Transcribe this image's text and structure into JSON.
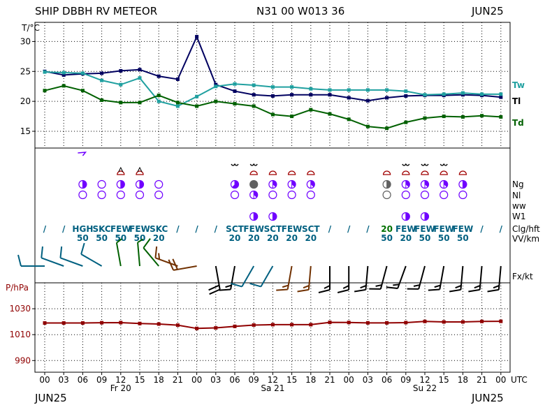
{
  "header": {
    "station": "SHIP DBBH RV METEOR",
    "position": "N31 00 W013 36",
    "month": "JUN25"
  },
  "footer": {
    "left": "JUN25",
    "right": "JUN25"
  },
  "colors": {
    "temperature": "#000060",
    "wet_bulb": "#20a0a0",
    "dewpoint": "#006000",
    "pressure": "#900000",
    "cloud_text": "#006080",
    "cloud_symbol": "#7000ff",
    "weather_symbol": "#a00000",
    "low_cloud_label": "#007000",
    "grid": "#000000"
  },
  "legend": {
    "tw": "Tw",
    "tl": "Tl",
    "td": "Td",
    "ng": "Ng",
    "nl": "Nl",
    "ww": "ww",
    "w1": "W1",
    "clg": "Clg/hft",
    "vv": "VV/km",
    "fx": "Fx/kt",
    "temp_unit": "T/°C",
    "pressure_unit": "P/hPa",
    "utc": "UTC"
  },
  "chart_data": {
    "type": "line",
    "x": [
      "00",
      "03",
      "06",
      "09",
      "12",
      "15",
      "18",
      "21",
      "00",
      "03",
      "06",
      "09",
      "12",
      "15",
      "18",
      "21",
      "00",
      "03",
      "06",
      "09",
      "12",
      "15",
      "18",
      "21",
      "00"
    ],
    "days": [
      {
        "label": "Fr 20",
        "tick_index": 4
      },
      {
        "label": "Sa 21",
        "tick_index": 12
      },
      {
        "label": "Su 22",
        "tick_index": 20
      }
    ],
    "temperature_panel": {
      "ylabel": "T/°C",
      "ylim": [
        12.2,
        33.2
      ],
      "ticks": [
        15,
        20,
        25,
        30
      ],
      "series": [
        {
          "name": "Tl",
          "color_key": "temperature",
          "points": [
            [
              0,
              25.0
            ],
            [
              1,
              24.4
            ],
            [
              2,
              24.6
            ],
            [
              3,
              24.7
            ],
            [
              4,
              25.1
            ],
            [
              5,
              25.3
            ],
            [
              6,
              24.2
            ],
            [
              7,
              23.7
            ],
            [
              8,
              30.8
            ],
            [
              9,
              22.8
            ],
            [
              10,
              21.7
            ],
            [
              11,
              21.1
            ],
            [
              12,
              20.9
            ],
            [
              13,
              21.1
            ],
            [
              14,
              21.1
            ],
            [
              15,
              21.1
            ],
            [
              16,
              20.6
            ],
            [
              17,
              20.1
            ],
            [
              18,
              20.6
            ],
            [
              19,
              20.9
            ],
            [
              20,
              21.0
            ],
            [
              21,
              21.0
            ],
            [
              22,
              21.1
            ],
            [
              23,
              21.0
            ],
            [
              24,
              20.7
            ]
          ]
        },
        {
          "name": "Tw",
          "color_key": "wet_bulb",
          "points": [
            [
              0,
              24.9
            ],
            [
              1,
              24.8
            ],
            [
              2,
              24.7
            ],
            [
              3,
              23.5
            ],
            [
              4,
              22.8
            ],
            [
              5,
              23.9
            ],
            [
              6,
              20.0
            ],
            [
              7,
              19.2
            ],
            [
              8,
              20.8
            ],
            [
              9,
              22.5
            ],
            [
              10,
              22.9
            ],
            [
              11,
              22.7
            ],
            [
              12,
              22.4
            ],
            [
              13,
              22.4
            ],
            [
              14,
              22.1
            ],
            [
              15,
              21.9
            ],
            [
              16,
              21.9
            ],
            [
              17,
              21.9
            ],
            [
              18,
              21.9
            ],
            [
              19,
              21.7
            ],
            [
              20,
              21.1
            ],
            [
              21,
              21.2
            ],
            [
              22,
              21.4
            ],
            [
              23,
              21.2
            ],
            [
              24,
              21.2
            ]
          ]
        },
        {
          "name": "Td",
          "color_key": "dewpoint",
          "points": [
            [
              0,
              21.8
            ],
            [
              1,
              22.6
            ],
            [
              2,
              21.8
            ],
            [
              3,
              20.2
            ],
            [
              4,
              19.8
            ],
            [
              5,
              19.8
            ],
            [
              6,
              21.0
            ],
            [
              7,
              19.8
            ],
            [
              8,
              19.2
            ],
            [
              9,
              20.0
            ],
            [
              10,
              19.6
            ],
            [
              11,
              19.2
            ],
            [
              12,
              17.8
            ],
            [
              13,
              17.5
            ],
            [
              14,
              18.6
            ],
            [
              15,
              17.9
            ],
            [
              16,
              17.0
            ],
            [
              17,
              15.8
            ],
            [
              18,
              15.5
            ],
            [
              19,
              16.5
            ],
            [
              20,
              17.2
            ],
            [
              21,
              17.5
            ],
            [
              22,
              17.4
            ],
            [
              23,
              17.6
            ],
            [
              24,
              17.4
            ]
          ]
        }
      ]
    },
    "pressure_panel": {
      "ylabel": "P/hPa",
      "ylim": [
        981,
        1050
      ],
      "ticks": [
        990,
        1010,
        1030
      ],
      "series": [
        {
          "name": "P",
          "color_key": "pressure",
          "points": [
            [
              0,
              1019.0
            ],
            [
              1,
              1019.0
            ],
            [
              2,
              1019.0
            ],
            [
              3,
              1019.2
            ],
            [
              4,
              1019.3
            ],
            [
              5,
              1018.6
            ],
            [
              6,
              1018.2
            ],
            [
              7,
              1017.3
            ],
            [
              8,
              1014.8
            ],
            [
              9,
              1015.2
            ],
            [
              10,
              1016.4
            ],
            [
              11,
              1017.4
            ],
            [
              12,
              1017.7
            ],
            [
              13,
              1017.7
            ],
            [
              14,
              1017.7
            ],
            [
              15,
              1019.5
            ],
            [
              16,
              1019.4
            ],
            [
              17,
              1019.1
            ],
            [
              18,
              1019.1
            ],
            [
              19,
              1019.3
            ],
            [
              20,
              1020.2
            ],
            [
              21,
              1019.8
            ],
            [
              22,
              1019.8
            ],
            [
              23,
              1020.2
            ],
            [
              24,
              1020.3
            ]
          ]
        }
      ]
    },
    "cloud_rows": {
      "clg": [
        {
          "i": 0,
          "text": "/"
        },
        {
          "i": 1,
          "text": "/"
        },
        {
          "i": 2,
          "text": "HGH"
        },
        {
          "i": 3,
          "text": "SKC"
        },
        {
          "i": 4,
          "text": "FEW"
        },
        {
          "i": 5,
          "text": "FEW"
        },
        {
          "i": 6,
          "text": "SKC"
        },
        {
          "i": 7,
          "text": "/"
        },
        {
          "i": 8,
          "text": "/"
        },
        {
          "i": 9,
          "text": "/"
        },
        {
          "i": 10,
          "text": "SCT"
        },
        {
          "i": 11,
          "text": "FEW"
        },
        {
          "i": 12,
          "text": "SCT"
        },
        {
          "i": 13,
          "text": "FEW"
        },
        {
          "i": 14,
          "text": "SCT"
        },
        {
          "i": 15,
          "text": "/"
        },
        {
          "i": 16,
          "text": "/"
        },
        {
          "i": 17,
          "text": "/"
        },
        {
          "i": 18,
          "text": "20",
          "color_key": "low_cloud_label"
        },
        {
          "i": 19,
          "text": "FEW"
        },
        {
          "i": 20,
          "text": "FEW"
        },
        {
          "i": 21,
          "text": "FEW"
        },
        {
          "i": 22,
          "text": "FEW"
        },
        {
          "i": 23,
          "text": "/"
        },
        {
          "i": 24,
          "text": "/"
        }
      ],
      "vv": [
        {
          "i": 2,
          "text": "50"
        },
        {
          "i": 3,
          "text": "50"
        },
        {
          "i": 4,
          "text": "50"
        },
        {
          "i": 5,
          "text": "50"
        },
        {
          "i": 6,
          "text": "20"
        },
        {
          "i": 10,
          "text": "20"
        },
        {
          "i": 11,
          "text": "20"
        },
        {
          "i": 12,
          "text": "20"
        },
        {
          "i": 13,
          "text": "20"
        },
        {
          "i": 14,
          "text": "20"
        },
        {
          "i": 18,
          "text": "50"
        },
        {
          "i": 19,
          "text": "20"
        },
        {
          "i": 20,
          "text": "50"
        },
        {
          "i": 21,
          "text": "50"
        },
        {
          "i": 22,
          "text": "50"
        }
      ],
      "ng": [
        {
          "i": 2,
          "n": 4
        },
        {
          "i": 3,
          "n": 0
        },
        {
          "i": 4,
          "n": 4
        },
        {
          "i": 5,
          "n": 4
        },
        {
          "i": 6,
          "n": 0
        },
        {
          "i": 10,
          "n": 5
        },
        {
          "i": 11,
          "n": 8,
          "grey": true
        },
        {
          "i": 12,
          "n": 3
        },
        {
          "i": 13,
          "n": 3
        },
        {
          "i": 14,
          "n": 3
        },
        {
          "i": 18,
          "n": 4,
          "grey": true
        },
        {
          "i": 19,
          "n": 3
        },
        {
          "i": 20,
          "n": 3
        },
        {
          "i": 21,
          "n": 3
        },
        {
          "i": 22,
          "n": 4
        }
      ],
      "nl": [
        {
          "i": 2,
          "n": 0
        },
        {
          "i": 3,
          "n": 0
        },
        {
          "i": 4,
          "n": 0
        },
        {
          "i": 5,
          "n": 0
        },
        {
          "i": 6,
          "n": 0
        },
        {
          "i": 10,
          "n": 0
        },
        {
          "i": 11,
          "n": 3
        },
        {
          "i": 12,
          "n": 0
        },
        {
          "i": 13,
          "n": 0
        },
        {
          "i": 14,
          "n": 0
        },
        {
          "i": 18,
          "n": 0,
          "grey": true
        },
        {
          "i": 19,
          "n": 0
        },
        {
          "i": 20,
          "n": 0
        },
        {
          "i": 21,
          "n": 0
        },
        {
          "i": 22,
          "n": 0
        }
      ],
      "w1": [
        {
          "i": 11,
          "n": 4
        },
        {
          "i": 12,
          "n": 4
        },
        {
          "i": 19,
          "n": 4
        },
        {
          "i": 20,
          "n": 4
        }
      ],
      "ww_domes": [
        4,
        5,
        11,
        12,
        13,
        14,
        18,
        19,
        20,
        21,
        22
      ],
      "ww_hats": [
        4,
        5
      ],
      "cloud_marks": [
        10,
        11,
        19,
        20,
        21
      ],
      "hook_marks": [
        2
      ]
    },
    "wind_barbs": [
      {
        "i": 0,
        "dir": 270,
        "speed": 10,
        "color": "#006080"
      },
      {
        "i": 1,
        "dir": 290,
        "speed": 10,
        "color": "#006080"
      },
      {
        "i": 2,
        "dir": 290,
        "speed": 10,
        "color": "#006080"
      },
      {
        "i": 3,
        "dir": 300,
        "speed": 10,
        "color": "#006080"
      },
      {
        "i": 4,
        "dir": 350,
        "speed": 5,
        "color": "#006000"
      },
      {
        "i": 5,
        "dir": 355,
        "speed": 5,
        "color": "#006000"
      },
      {
        "i": 6,
        "dir": 320,
        "speed": 10,
        "color": "#006000"
      },
      {
        "i": 7,
        "dir": 290,
        "speed": 15,
        "color": "#703000"
      },
      {
        "i": 8,
        "dir": 260,
        "speed": 20,
        "color": "#703000"
      },
      {
        "i": 9,
        "dir": 170,
        "speed": 20,
        "color": "#000000"
      },
      {
        "i": 10,
        "dir": 190,
        "speed": 15,
        "color": "#000000"
      },
      {
        "i": 11,
        "dir": 210,
        "speed": 10,
        "color": "#006080"
      },
      {
        "i": 12,
        "dir": 210,
        "speed": 10,
        "color": "#006080"
      },
      {
        "i": 13,
        "dir": 190,
        "speed": 15,
        "color": "#703000"
      },
      {
        "i": 14,
        "dir": 185,
        "speed": 15,
        "color": "#703000"
      },
      {
        "i": 15,
        "dir": 180,
        "speed": 15,
        "color": "#000000"
      },
      {
        "i": 16,
        "dir": 180,
        "speed": 15,
        "color": "#000000"
      },
      {
        "i": 17,
        "dir": 185,
        "speed": 15,
        "color": "#000000"
      },
      {
        "i": 18,
        "dir": 195,
        "speed": 15,
        "color": "#000000"
      },
      {
        "i": 19,
        "dir": 200,
        "speed": 15,
        "color": "#000000"
      },
      {
        "i": 20,
        "dir": 195,
        "speed": 15,
        "color": "#000000"
      },
      {
        "i": 21,
        "dir": 190,
        "speed": 15,
        "color": "#000000"
      },
      {
        "i": 22,
        "dir": 185,
        "speed": 15,
        "color": "#000000"
      },
      {
        "i": 23,
        "dir": 185,
        "speed": 15,
        "color": "#000000"
      },
      {
        "i": 24,
        "dir": 185,
        "speed": 15,
        "color": "#000000"
      }
    ]
  }
}
